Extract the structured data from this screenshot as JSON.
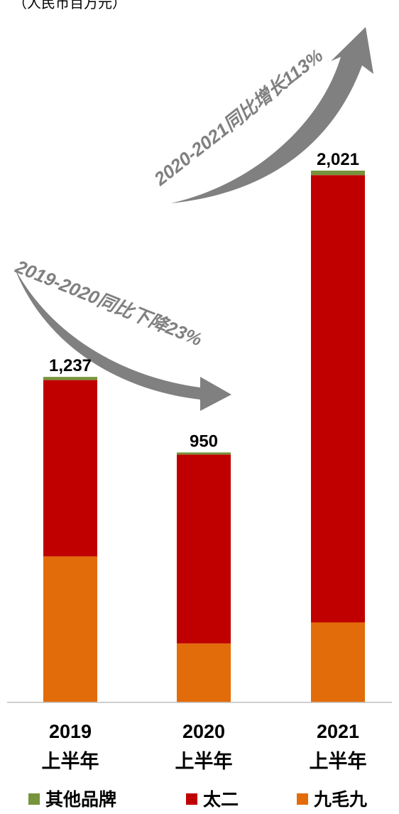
{
  "unit_note": "（人民币百万元）",
  "chart_data": {
    "type": "bar",
    "stacked": true,
    "categories": [
      {
        "year": "2019",
        "sub": "上半年"
      },
      {
        "year": "2020",
        "sub": "上半年"
      },
      {
        "year": "2021",
        "sub": "上半年"
      }
    ],
    "series": [
      {
        "name": "九毛九",
        "color": "#E36C0A",
        "values": [
          555,
          224,
          304
        ]
      },
      {
        "name": "太二",
        "color": "#C00000",
        "values": [
          670,
          718,
          1700
        ]
      },
      {
        "name": "其他品牌",
        "color": "#77933C",
        "values": [
          12,
          8,
          17
        ]
      }
    ],
    "totals": [
      "1,237",
      "950",
      "2,021"
    ],
    "legend_order": [
      "其他品牌",
      "太二",
      "九毛九"
    ],
    "legend_position": "bottom",
    "annotations": [
      {
        "text": "2019-2020同比下降23%"
      },
      {
        "text": "2020-2021同比增长113%"
      }
    ],
    "ylim": [
      0,
      2021
    ],
    "grid": false
  }
}
